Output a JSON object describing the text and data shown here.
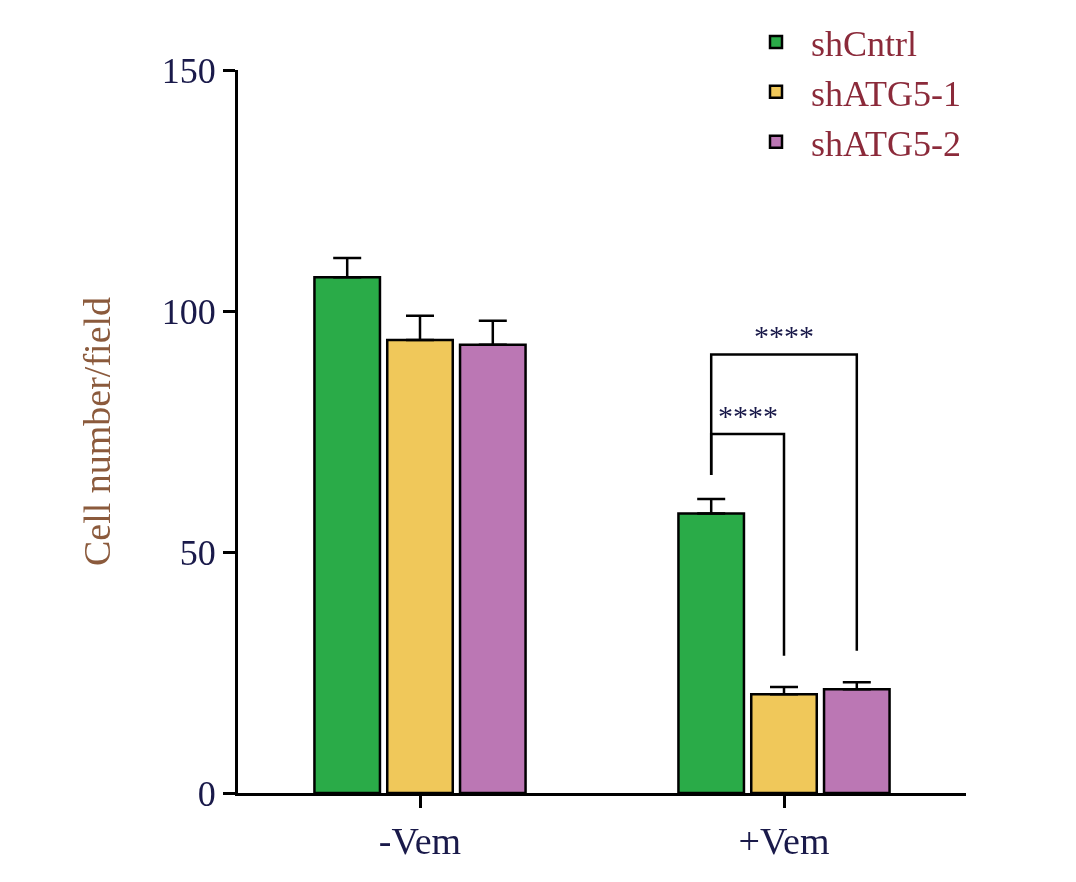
{
  "chart_data": {
    "type": "bar",
    "ylabel": "Cell number/field",
    "categories": [
      "-Vem",
      "+Vem"
    ],
    "series": [
      {
        "name": "shCntrl",
        "color": "#2aab48",
        "values": [
          107,
          58
        ],
        "errors": [
          [
            107,
            111
          ],
          [
            58,
            61
          ]
        ]
      },
      {
        "name": "shATG5-1",
        "color": "#f0c85a",
        "values": [
          94,
          20.5
        ],
        "errors": [
          [
            94,
            99
          ],
          [
            20.5,
            22
          ]
        ]
      },
      {
        "name": "shATG5-2",
        "color": "#bb77b4",
        "values": [
          93,
          21.5
        ],
        "errors": [
          [
            93,
            98
          ],
          [
            21.5,
            23
          ]
        ]
      }
    ],
    "ylim": [
      0,
      150
    ],
    "yticks": [
      0,
      50,
      100,
      150
    ],
    "annotations": [
      "****",
      "****"
    ],
    "legend": "top right"
  }
}
